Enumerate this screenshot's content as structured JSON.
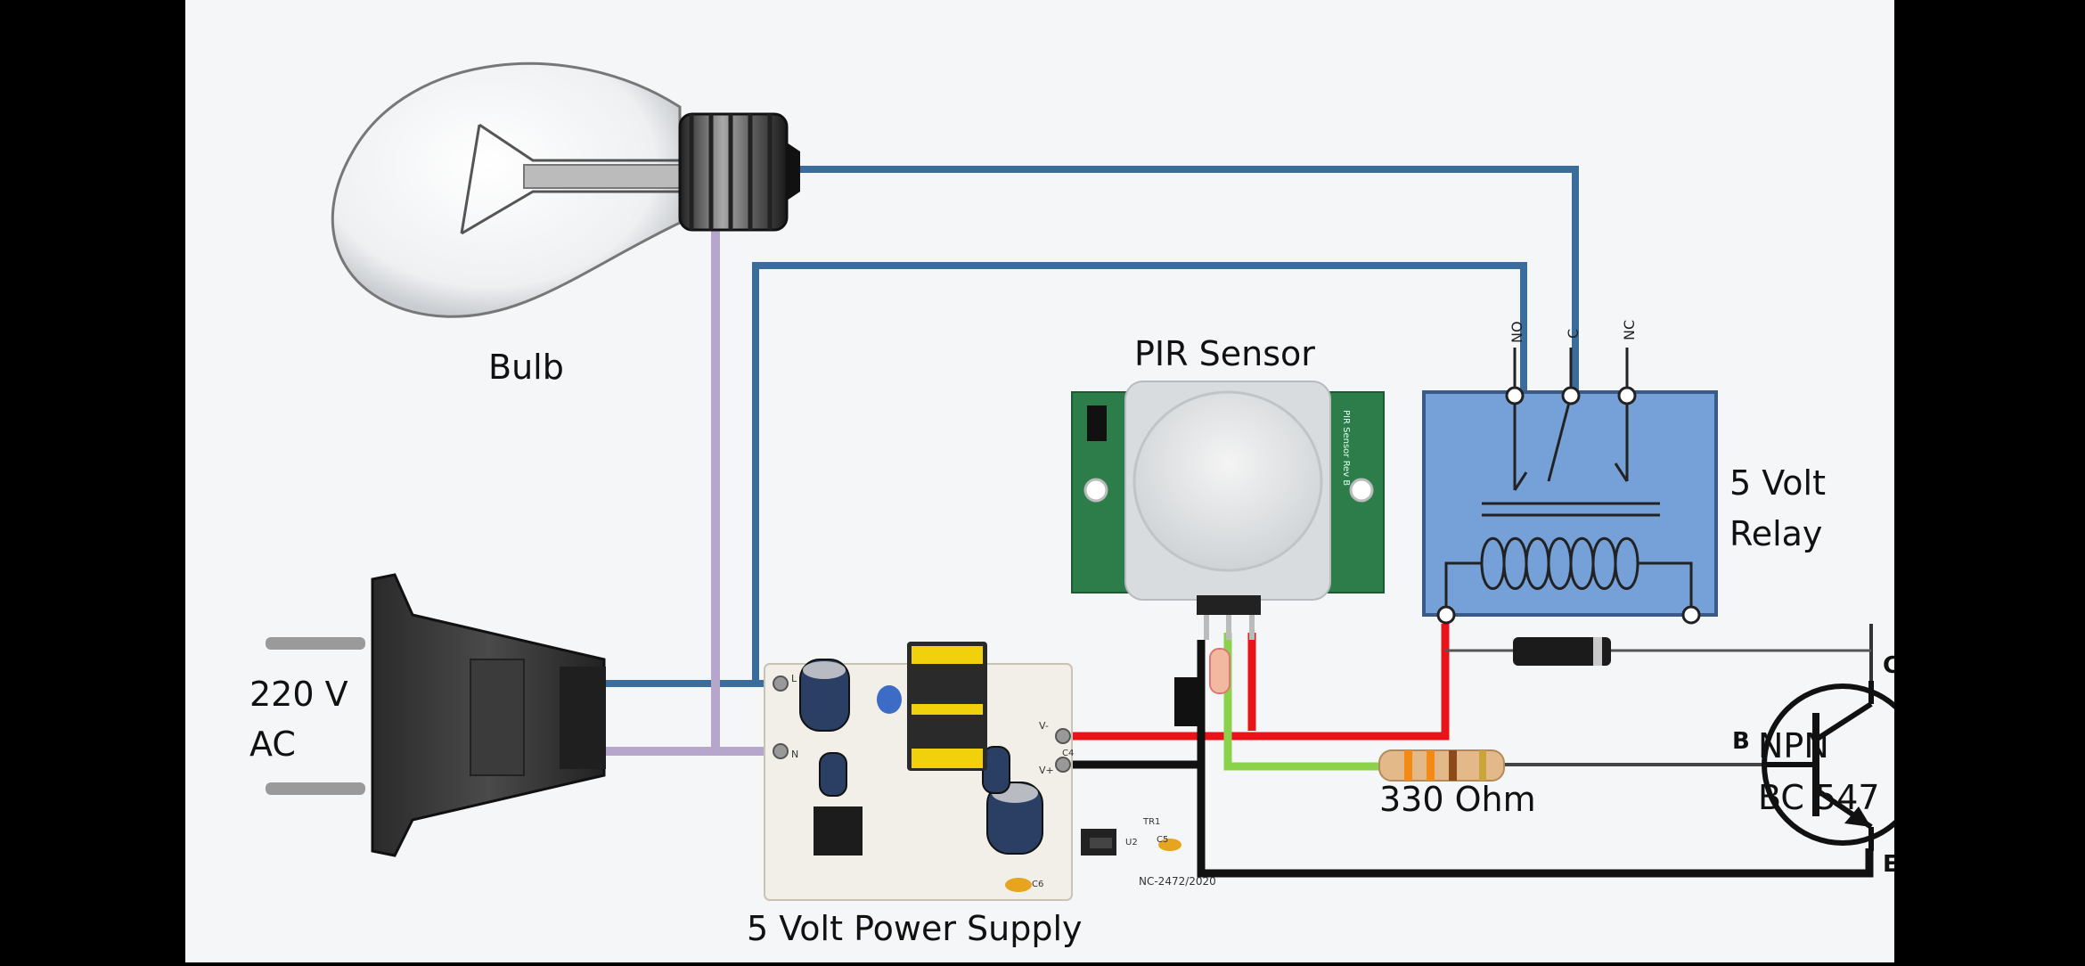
{
  "labels": {
    "bulb": "Bulb",
    "pir": "PIR Sensor",
    "relay_line1": "5 Volt",
    "relay_line2": "Relay",
    "ac_line1": "220 V",
    "ac_line2": "AC",
    "npn_line1": "NPN",
    "npn_line2": "BC 547",
    "resistor": "330 Ohm",
    "power_supply": "5 Volt Power Supply",
    "relay_no": "NO",
    "relay_c": "C",
    "relay_nc": "NC",
    "transistor_c": "C",
    "transistor_b": "B",
    "transistor_e": "E",
    "pcb_l": "L",
    "pcb_n": "N",
    "pcb_vminus": "V-",
    "pcb_vplus": "V+",
    "pcb_code": "NC-2472/2020",
    "pcb_c4": "C4",
    "pcb_c5": "C5",
    "pcb_c6": "C6",
    "pcb_u2": "U2",
    "pcb_tr1": "TR1",
    "pir_board_text": "PIR Sensor Rev B"
  },
  "colors": {
    "blue_wire": "#3a6d9c",
    "lilac_wire": "#b7a6cc",
    "red_wire": "#e8141a",
    "green_wire": "#8bd24b",
    "black_wire": "#111111",
    "relay_fill": "#76a1d8",
    "pir_board": "#2d7d4a"
  }
}
